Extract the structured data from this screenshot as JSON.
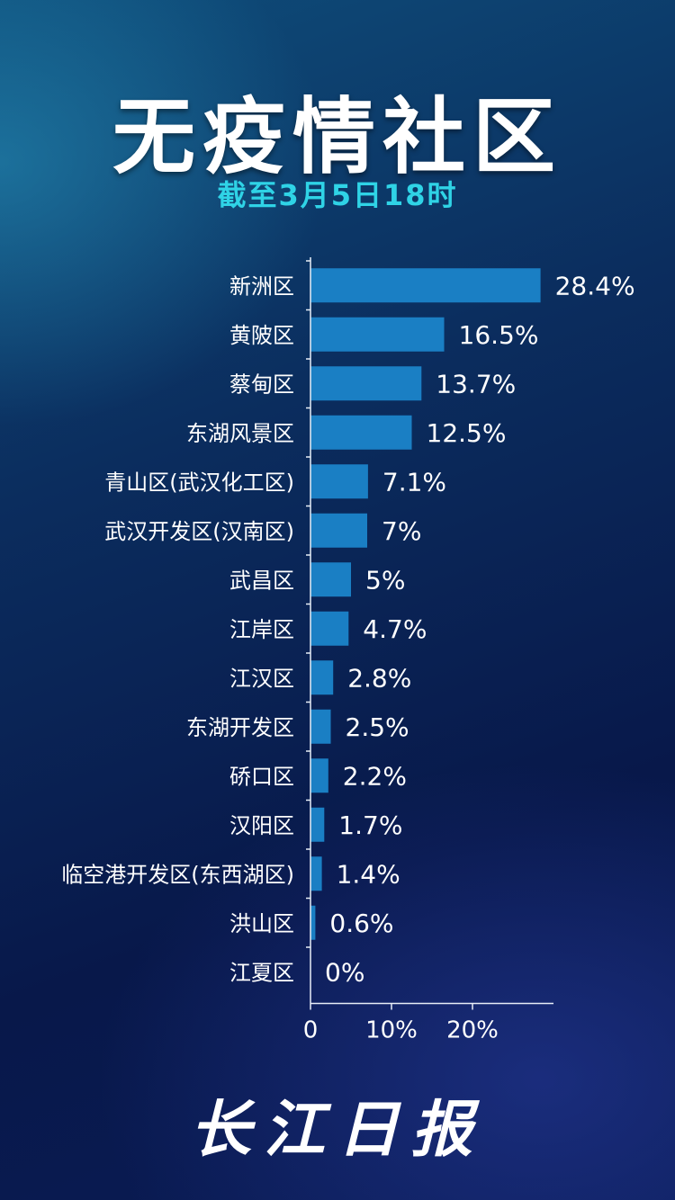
{
  "title": "无疫情社区",
  "subtitle": "截至3月5日18时",
  "logo_text": "长江日报",
  "colors": {
    "bar": "#1a7fc4",
    "axis": "#e8eef7",
    "subtitle": "#2fd3e6"
  },
  "chart_data": {
    "type": "bar",
    "orientation": "horizontal",
    "categories": [
      "新洲区",
      "黄陂区",
      "蔡甸区",
      "东湖风景区",
      "青山区(武汉化工区)",
      "武汉开发区(汉南区)",
      "武昌区",
      "江岸区",
      "江汉区",
      "东湖开发区",
      "硚口区",
      "汉阳区",
      "临空港开发区(东西湖区)",
      "洪山区",
      "江夏区"
    ],
    "values": [
      28.4,
      16.5,
      13.7,
      12.5,
      7.1,
      7,
      5,
      4.7,
      2.8,
      2.5,
      2.2,
      1.7,
      1.4,
      0.6,
      0
    ],
    "data_labels": [
      "28.4%",
      "16.5%",
      "13.7%",
      "12.5%",
      "7.1%",
      "7%",
      "5%",
      "4.7%",
      "2.8%",
      "2.5%",
      "2.2%",
      "1.7%",
      "1.4%",
      "0.6%",
      "0%"
    ],
    "x_ticks": [
      "0",
      "10%",
      "20%"
    ],
    "x_tick_values": [
      0,
      10,
      20
    ],
    "xlim": [
      0,
      30
    ],
    "grid": false
  }
}
